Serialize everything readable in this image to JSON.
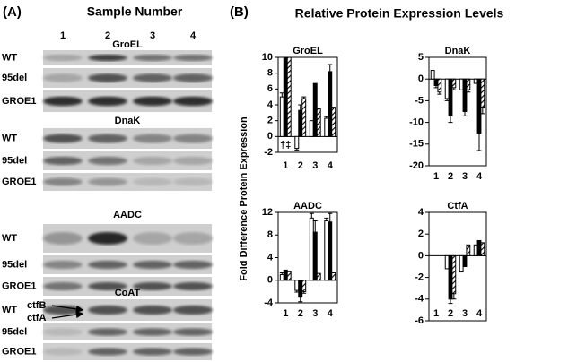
{
  "panel_a": {
    "label": "(A)",
    "title": "Sample Number",
    "lanes": [
      "1",
      "2",
      "3",
      "4"
    ],
    "blots": [
      {
        "protein": "GroEL",
        "rows": [
          "WT",
          "95del",
          "GROE1"
        ]
      },
      {
        "protein": "DnaK",
        "rows": [
          "WT",
          "95del",
          "GROE1"
        ]
      },
      {
        "protein": "AADC",
        "rows": [
          "WT",
          "95del",
          "GROE1"
        ]
      },
      {
        "protein": "CoAT",
        "rows": [
          "WT",
          "95del",
          "GROE1"
        ],
        "arrows": [
          "ctfB",
          "ctfA"
        ]
      }
    ]
  },
  "panel_b": {
    "label": "(B)",
    "title": "Relative Protein Expression Levels",
    "y_label": "Fold Difference Protein Expression"
  },
  "chart_data": [
    {
      "type": "bar",
      "title": "GroEL",
      "categories": [
        "1",
        "2",
        "3",
        "4"
      ],
      "annotation": "†‡",
      "ylim": [
        -2,
        10
      ],
      "yticks": [
        -2,
        0,
        2,
        4,
        6,
        8,
        10
      ],
      "series": [
        {
          "color": "#ffffff",
          "values": [
            5,
            -1.5,
            2,
            2.3
          ],
          "errors": [
            0.5,
            0.2,
            0,
            0.2
          ]
        },
        {
          "color": "#000000",
          "values": [
            10,
            3.3,
            6.7,
            8.2
          ],
          "errors": [
            0,
            0.7,
            0,
            0.9
          ]
        },
        {
          "color": "#000000",
          "hatch": true,
          "values": [
            10,
            4.8,
            3.5,
            3.7
          ],
          "errors": [
            0,
            0.2,
            0,
            0
          ]
        }
      ]
    },
    {
      "type": "bar",
      "title": "DnaK",
      "categories": [
        "1",
        "2",
        "3",
        "4"
      ],
      "ylim": [
        -20,
        5
      ],
      "yticks": [
        -20,
        -15,
        -10,
        -5,
        0,
        5
      ],
      "series": [
        {
          "color": "#ffffff",
          "values": [
            2,
            -4.5,
            -2.5,
            -1
          ],
          "errors": [
            0,
            0.5,
            0,
            0
          ]
        },
        {
          "color": "#000000",
          "values": [
            -1.5,
            -8.5,
            -7.5,
            -12.5
          ],
          "errors": [
            0.5,
            1.5,
            1,
            4
          ]
        },
        {
          "color": "#000000",
          "hatch": true,
          "values": [
            -3,
            -2,
            -2.5,
            -6.5
          ],
          "errors": [
            0.5,
            0.5,
            0.5,
            1.5
          ]
        }
      ]
    },
    {
      "type": "bar",
      "title": "AADC",
      "categories": [
        "1",
        "2",
        "3",
        "4"
      ],
      "ylim": [
        -4,
        12
      ],
      "yticks": [
        -4,
        0,
        4,
        8,
        12
      ],
      "series": [
        {
          "color": "#ffffff",
          "values": [
            1,
            -1.8,
            11,
            10.5
          ],
          "errors": [
            0.3,
            0.3,
            0.8,
            0.5
          ]
        },
        {
          "color": "#000000",
          "values": [
            1.7,
            -3,
            8.5,
            10.3
          ],
          "errors": [
            0.1,
            0.8,
            2,
            1.5
          ]
        },
        {
          "color": "#000000",
          "hatch": true,
          "values": [
            1.5,
            -2,
            1.2,
            1.3
          ],
          "errors": [
            0,
            0.3,
            0,
            0
          ]
        }
      ]
    },
    {
      "type": "bar",
      "title": "CtfA",
      "categories": [
        "1",
        "2",
        "3",
        "4"
      ],
      "ylim": [
        -6,
        4
      ],
      "yticks": [
        -6,
        -4,
        -2,
        0,
        2,
        4
      ],
      "series": [
        {
          "color": "#ffffff",
          "values": [
            0,
            -1.2,
            -1.5,
            1
          ],
          "errors": [
            0,
            0,
            0,
            0
          ]
        },
        {
          "color": "#000000",
          "values": [
            0,
            -4,
            -1,
            1.4
          ],
          "errors": [
            0,
            0.4,
            0,
            0
          ]
        },
        {
          "color": "#000000",
          "hatch": true,
          "values": [
            0,
            -3.5,
            1,
            1.2
          ],
          "errors": [
            0,
            0.5,
            0,
            0
          ]
        }
      ]
    }
  ]
}
